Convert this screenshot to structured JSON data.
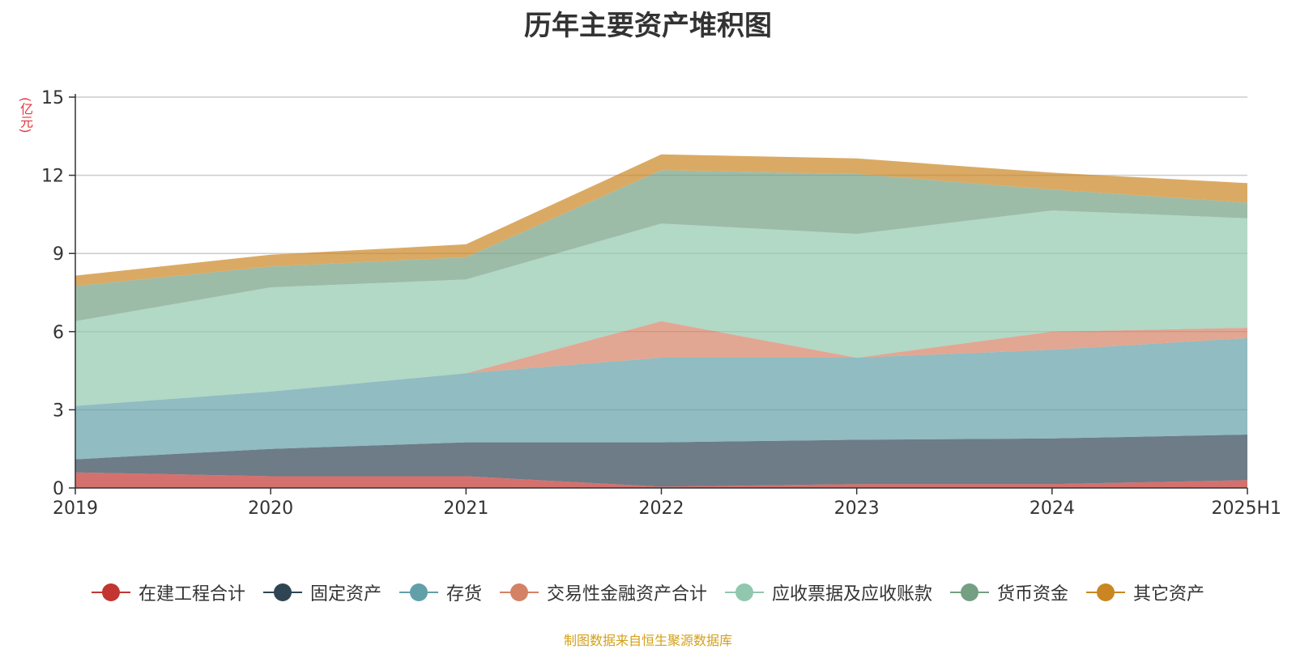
{
  "title": "历年主要资产堆积图",
  "unit_label": "(亿元)",
  "source_note": "制图数据来自恒生聚源数据库",
  "chart_data": {
    "type": "area",
    "stacked": true,
    "title": "历年主要资产堆积图",
    "ylabel": "(亿元)",
    "xlabel": "",
    "ylim": [
      0,
      15
    ],
    "yticks": [
      "0",
      "3",
      "6",
      "9",
      "12",
      "15"
    ],
    "categories": [
      "2019",
      "2020",
      "2021",
      "2022",
      "2023",
      "2024",
      "2025H1"
    ],
    "grid": true,
    "legend_position": "bottom",
    "series": [
      {
        "name": "在建工程合计",
        "color": "#c23531",
        "values": [
          0.6,
          0.45,
          0.45,
          0.05,
          0.15,
          0.15,
          0.3
        ]
      },
      {
        "name": "固定资产",
        "color": "#2f4554",
        "values": [
          0.5,
          1.05,
          1.3,
          1.7,
          1.7,
          1.75,
          1.75
        ]
      },
      {
        "name": "存货",
        "color": "#61a0a8",
        "values": [
          2.05,
          2.2,
          2.65,
          3.25,
          3.15,
          3.4,
          3.7
        ]
      },
      {
        "name": "交易性金融资产合计",
        "color": "#d48265",
        "values": [
          0,
          0,
          0,
          1.4,
          0,
          0.7,
          0.4
        ]
      },
      {
        "name": "应收票据及应收账款",
        "color": "#91c7ae",
        "values": [
          3.25,
          4.0,
          3.6,
          3.75,
          4.75,
          4.65,
          4.2
        ]
      },
      {
        "name": "货币资金",
        "color": "#749f83",
        "values": [
          1.35,
          0.8,
          0.85,
          2.05,
          2.3,
          0.8,
          0.6
        ]
      },
      {
        "name": "其它资产",
        "color": "#ca8622",
        "values": [
          0.4,
          0.45,
          0.5,
          0.6,
          0.6,
          0.65,
          0.75
        ]
      }
    ]
  }
}
